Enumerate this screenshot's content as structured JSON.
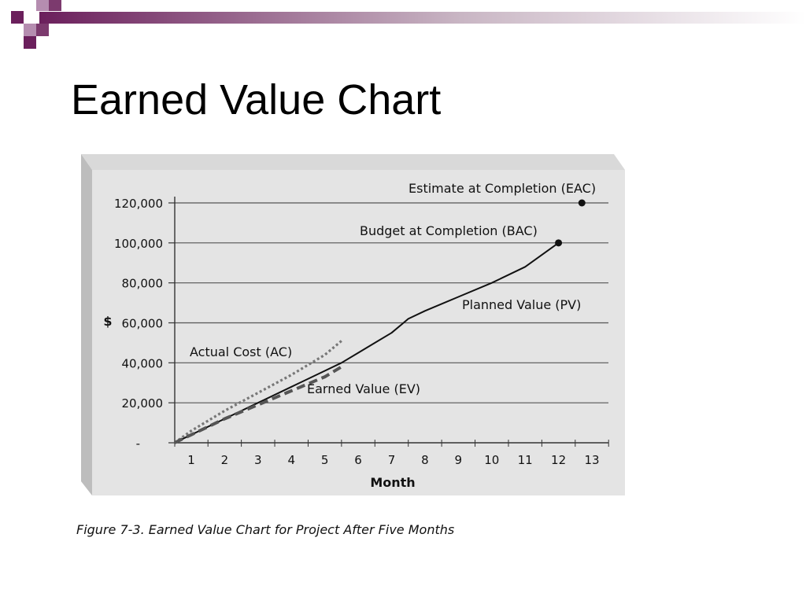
{
  "slide": {
    "title": "Earned Value Chart",
    "caption": "Figure 7-3. Earned Value Chart for Project After Five Months"
  },
  "colors": {
    "accent_purple": "#6b1f5c",
    "panel_bg": "#e4e4e4",
    "frame_gray": "#c8c8c8",
    "pv_line": "#111111",
    "ac_line": "#777777",
    "ev_line": "#555555"
  },
  "chart_data": {
    "type": "line",
    "ylabel": "$",
    "xlabel": "Month",
    "ylim": [
      0,
      120000
    ],
    "xlim": [
      0.5,
      13
    ],
    "y_ticks": [
      {
        "value": 0,
        "label": "-"
      },
      {
        "value": 20000,
        "label": "20,000"
      },
      {
        "value": 40000,
        "label": "40,000"
      },
      {
        "value": 60000,
        "label": "60,000"
      },
      {
        "value": 80000,
        "label": "80,000"
      },
      {
        "value": 100000,
        "label": "100,000"
      },
      {
        "value": 120000,
        "label": "120,000"
      }
    ],
    "x_ticks": [
      "1",
      "2",
      "3",
      "4",
      "5",
      "6",
      "7",
      "8",
      "9",
      "10",
      "11",
      "12",
      "13"
    ],
    "grid": true,
    "series": [
      {
        "name": "Planned Value (PV)",
        "style": "solid",
        "x": [
          0.5,
          1,
          2,
          3,
          4,
          5,
          5.5,
          6,
          6.5,
          7,
          7.5,
          8,
          9,
          10,
          11,
          12
        ],
        "y": [
          0,
          4000,
          12000,
          20000,
          28000,
          36000,
          40000,
          45000,
          50000,
          55000,
          62000,
          66000,
          73000,
          80000,
          88000,
          100000
        ]
      },
      {
        "name": "Actual Cost (AC)",
        "style": "dotted",
        "x": [
          0.5,
          1,
          2,
          3,
          4,
          5,
          5.5
        ],
        "y": [
          0,
          6000,
          16000,
          25000,
          34000,
          44000,
          51000
        ]
      },
      {
        "name": "Earned Value (EV)",
        "style": "dashed",
        "x": [
          0.5,
          1,
          2,
          3,
          4,
          5,
          5.5
        ],
        "y": [
          0,
          4000,
          12000,
          19000,
          26000,
          33000,
          38000
        ]
      }
    ],
    "points": [
      {
        "name": "Budget at Completion (BAC)",
        "x": 12,
        "y": 100000
      },
      {
        "name": "Estimate at Completion (EAC)",
        "x": 12.7,
        "y": 120000
      }
    ],
    "annotations": [
      {
        "text": "Estimate at Completion (EAC)"
      },
      {
        "text": "Budget at Completion (BAC)"
      },
      {
        "text": "Planned Value (PV)"
      },
      {
        "text": "Actual Cost (AC)"
      },
      {
        "text": "Earned Value (EV)"
      }
    ]
  }
}
